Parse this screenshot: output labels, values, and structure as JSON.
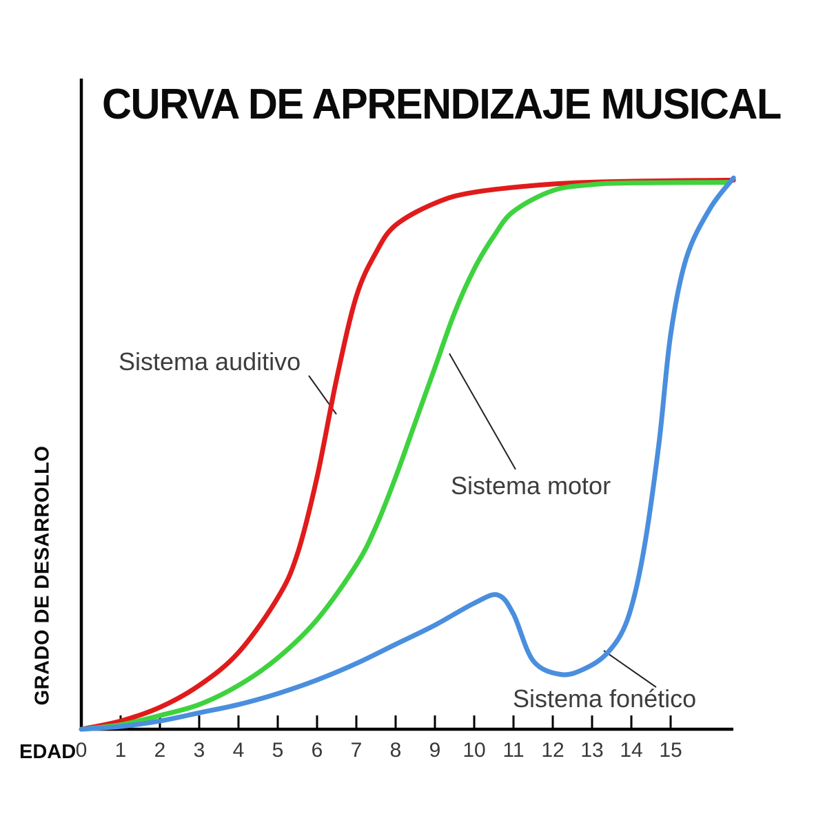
{
  "chart_data": {
    "type": "line",
    "title": "CURVA DE APRENDIZAJE MUSICAL",
    "xlabel": "EDAD",
    "ylabel": "GRADO DE DESARROLLO",
    "x_ticks": [
      "0",
      "1",
      "2",
      "3",
      "4",
      "5",
      "6",
      "7",
      "8",
      "9",
      "10",
      "11",
      "12",
      "13",
      "14",
      "15"
    ],
    "xlim": [
      0,
      16.6
    ],
    "ylim": [
      0,
      100
    ],
    "grid": false,
    "legend_position": "inline-annotations",
    "series": [
      {
        "name": "Sistema auditivo",
        "color": "#e01b1b",
        "points": [
          [
            0,
            0
          ],
          [
            1,
            1.5
          ],
          [
            2,
            4
          ],
          [
            3,
            8
          ],
          [
            4,
            14
          ],
          [
            5,
            24
          ],
          [
            5.5,
            32
          ],
          [
            6,
            46
          ],
          [
            6.5,
            64
          ],
          [
            7,
            79
          ],
          [
            7.5,
            87
          ],
          [
            8,
            92
          ],
          [
            9,
            96
          ],
          [
            10,
            98
          ],
          [
            12,
            99.5
          ],
          [
            14,
            100
          ],
          [
            16.6,
            100.2
          ]
        ]
      },
      {
        "name": "Sistema motor",
        "color": "#3fd23f",
        "points": [
          [
            0,
            0
          ],
          [
            1,
            0.8
          ],
          [
            2,
            2.5
          ],
          [
            3,
            4.5
          ],
          [
            4,
            8
          ],
          [
            5,
            13
          ],
          [
            6,
            20
          ],
          [
            7,
            30
          ],
          [
            7.5,
            37
          ],
          [
            8,
            46
          ],
          [
            8.5,
            56
          ],
          [
            9,
            66
          ],
          [
            9.5,
            76
          ],
          [
            10,
            84
          ],
          [
            10.5,
            90
          ],
          [
            11,
            94.5
          ],
          [
            12,
            98.3
          ],
          [
            13,
            99.4
          ],
          [
            14,
            99.7
          ],
          [
            16.5,
            99.8
          ]
        ]
      },
      {
        "name": "Sistema fonético",
        "color": "#4a8ede",
        "points": [
          [
            0,
            0
          ],
          [
            1,
            0.5
          ],
          [
            2,
            1.5
          ],
          [
            3,
            3
          ],
          [
            4,
            4.5
          ],
          [
            5,
            6.5
          ],
          [
            6,
            9
          ],
          [
            7,
            12
          ],
          [
            8,
            15.5
          ],
          [
            9,
            19
          ],
          [
            10,
            23
          ],
          [
            10.6,
            24.5
          ],
          [
            11,
            21
          ],
          [
            11.5,
            12.5
          ],
          [
            12.2,
            10
          ],
          [
            12.8,
            11
          ],
          [
            13.4,
            14
          ],
          [
            13.9,
            20
          ],
          [
            14.3,
            32
          ],
          [
            14.7,
            52
          ],
          [
            15,
            72
          ],
          [
            15.4,
            86
          ],
          [
            16,
            95
          ],
          [
            16.6,
            100.6
          ]
        ]
      }
    ],
    "annotations": [
      {
        "text": "Sistema auditivo",
        "target_series": "Sistema auditivo"
      },
      {
        "text": "Sistema motor",
        "target_series": "Sistema motor"
      },
      {
        "text": "Sistema fonético",
        "target_series": "Sistema fonético"
      }
    ]
  }
}
